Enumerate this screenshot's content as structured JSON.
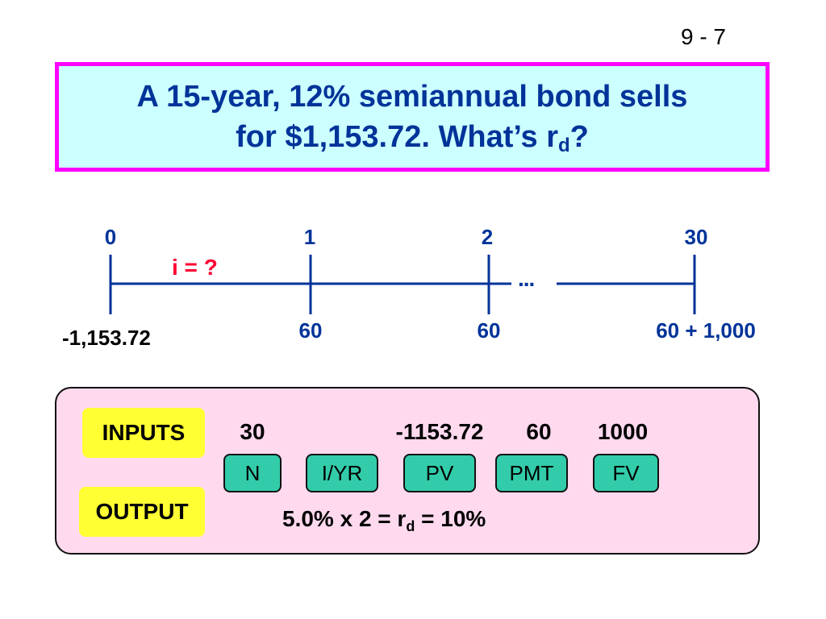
{
  "slide_number": "9 - 7",
  "title": {
    "line1": "A 15-year, 12% semiannual bond sells",
    "line2_prefix": "for $1,153.72.  What’s r",
    "line2_sub": "d",
    "line2_suffix": "?"
  },
  "timeline": {
    "periods": [
      "0",
      "1",
      "2",
      "30"
    ],
    "interest_label": "i = ?",
    "ellipsis": "...",
    "cash_flow_0": "-1,153.72",
    "cash_flows": [
      "60",
      "60",
      "60 + 1,000"
    ]
  },
  "calculator": {
    "inputs_label": "INPUTS",
    "output_label": "OUTPUT",
    "input_values": [
      "30",
      "-1153.72",
      "60",
      "1000"
    ],
    "keys": [
      "N",
      "I/YR",
      "PV",
      "PMT",
      "FV"
    ],
    "result_prefix": "5.0% x 2 = r",
    "result_sub": "d",
    "result_suffix": " = 10%"
  },
  "colors": {
    "title_border": "#ff00ff",
    "title_bg": "#ccffff",
    "title_text": "#003399",
    "timeline": "#003399",
    "interest_text": "#ff0033",
    "panel_bg": "#ffd9ee",
    "label_bg": "#ffff33",
    "key_bg": "#33ccaa"
  }
}
